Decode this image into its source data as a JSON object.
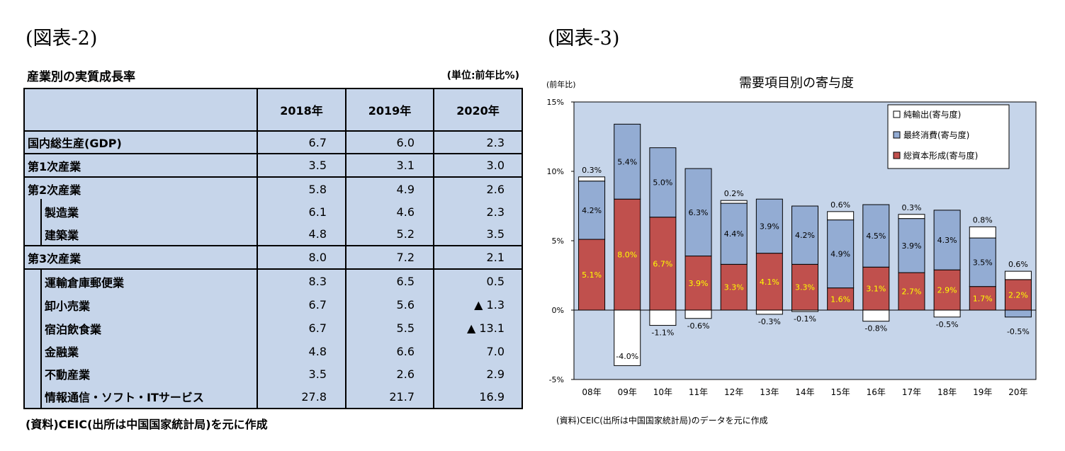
{
  "figure2": {
    "label": "(図表-2)",
    "title": "産業別の実質成長率",
    "unit": "(単位:前年比%)",
    "columns": [
      "2018年",
      "2019年",
      "2020年"
    ],
    "rows": [
      {
        "name": "国内総生産(GDP)",
        "values": [
          "6.7",
          "6.0",
          "2.3"
        ]
      },
      {
        "name": "第1次産業",
        "values": [
          "3.5",
          "3.1",
          "3.0"
        ]
      },
      {
        "name": "第2次産業",
        "values": [
          "5.8",
          "4.9",
          "2.6"
        ]
      },
      {
        "name": "製造業",
        "values": [
          "6.1",
          "4.6",
          "2.3"
        ]
      },
      {
        "name": "建築業",
        "values": [
          "4.8",
          "5.2",
          "3.5"
        ]
      },
      {
        "name": "第3次産業",
        "values": [
          "8.0",
          "7.2",
          "2.1"
        ]
      },
      {
        "name": "運輸倉庫郵便業",
        "values": [
          "8.3",
          "6.5",
          "0.5"
        ]
      },
      {
        "name": "卸小売業",
        "values": [
          "6.7",
          "5.6",
          "▲ 1.3"
        ]
      },
      {
        "name": "宿泊飲食業",
        "values": [
          "6.7",
          "5.5",
          "▲ 13.1"
        ]
      },
      {
        "name": "金融業",
        "values": [
          "4.8",
          "6.6",
          "7.0"
        ]
      },
      {
        "name": "不動産業",
        "values": [
          "3.5",
          "2.6",
          "2.9"
        ]
      },
      {
        "name": "情報通信・ソフト・ITサービス",
        "values": [
          "27.8",
          "21.7",
          "16.9"
        ]
      }
    ],
    "source": "(資料)CEIC(出所は中国国家統計局)を元に作成"
  },
  "figure3": {
    "label": "(図表-3)",
    "source": "(資料)CEIC(出所は中国国家統計局)のデータを元に作成"
  },
  "chart_data": {
    "type": "bar",
    "stacked": true,
    "title": "需要項目別の寄与度",
    "ylabel": "(前年比)",
    "ylim": [
      -5,
      15
    ],
    "yticks": [
      "15%",
      "10%",
      "5%",
      "0%",
      "-5%"
    ],
    "categories": [
      "08年",
      "09年",
      "10年",
      "11年",
      "12年",
      "13年",
      "14年",
      "15年",
      "16年",
      "17年",
      "18年",
      "19年",
      "20年"
    ],
    "series": [
      {
        "name": "純輸出(寄与度)",
        "color": "#ffffff",
        "values": [
          0.3,
          -4.0,
          -1.1,
          -0.6,
          0.2,
          -0.3,
          -0.1,
          0.6,
          -0.8,
          0.3,
          -0.5,
          0.8,
          0.6
        ],
        "labels": [
          "0.3%",
          "-4.0%",
          "-1.1%",
          "-0.6%",
          "0.2%",
          "-0.3%",
          "-0.1%",
          "0.6%",
          "-0.8%",
          "0.3%",
          "-0.5%",
          "0.8%",
          "0.6%"
        ]
      },
      {
        "name": "最終消費(寄与度)",
        "color": "#93acd3",
        "values": [
          4.2,
          5.4,
          5.0,
          6.3,
          4.4,
          3.9,
          4.2,
          4.9,
          4.5,
          3.9,
          4.3,
          3.5,
          -0.5
        ],
        "labels": [
          "4.2%",
          "5.4%",
          "5.0%",
          "6.3%",
          "4.4%",
          "3.9%",
          "4.2%",
          "4.9%",
          "4.5%",
          "3.9%",
          "4.3%",
          "3.5%",
          "-0.5%"
        ]
      },
      {
        "name": "総資本形成(寄与度)",
        "color": "#c0504d",
        "values": [
          5.1,
          8.0,
          6.7,
          3.9,
          3.3,
          4.1,
          3.3,
          1.6,
          3.1,
          2.7,
          2.9,
          1.7,
          2.2
        ],
        "labels": [
          "5.1%",
          "8.0%",
          "6.7%",
          "3.9%",
          "3.3%",
          "4.1%",
          "3.3%",
          "1.6%",
          "3.1%",
          "2.7%",
          "2.9%",
          "1.7%",
          "2.2%"
        ]
      }
    ],
    "plot_bg": "#c6d5ea",
    "grid": false,
    "legend": "top-right"
  }
}
